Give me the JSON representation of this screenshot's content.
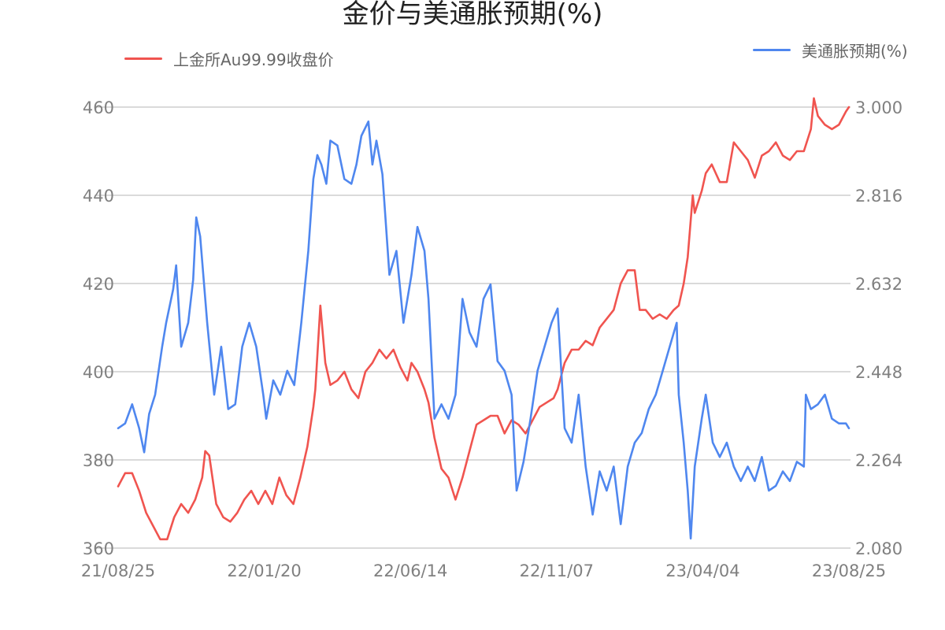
{
  "chart_data": {
    "type": "line",
    "title": "金价与美通胀预期(%)",
    "x_ticks": [
      "21/08/25",
      "22/01/20",
      "22/06/14",
      "22/11/07",
      "23/04/04",
      "23/08/25"
    ],
    "y_left": {
      "range": [
        360,
        460
      ],
      "ticks": [
        "360",
        "380",
        "400",
        "420",
        "440",
        "460"
      ]
    },
    "y_right": {
      "range": [
        2.08,
        3.0
      ],
      "ticks": [
        "2.080",
        "2.264",
        "2.448",
        "2.632",
        "2.816",
        "3.000"
      ]
    },
    "grid": true,
    "legend_placement": "top",
    "x_range": [
      "2021-08-25",
      "2023-08-25"
    ],
    "series": [
      {
        "name": "上金所Au99.99收盘价",
        "color": "#f0544f",
        "axis": "left",
        "points": [
          [
            "2021-08-25",
            374
          ],
          [
            "2021-09-01",
            377
          ],
          [
            "2021-09-08",
            377
          ],
          [
            "2021-09-15",
            373
          ],
          [
            "2021-09-22",
            368
          ],
          [
            "2021-09-29",
            365
          ],
          [
            "2021-10-06",
            362
          ],
          [
            "2021-10-13",
            362
          ],
          [
            "2021-10-20",
            367
          ],
          [
            "2021-10-27",
            370
          ],
          [
            "2021-11-03",
            368
          ],
          [
            "2021-11-10",
            371
          ],
          [
            "2021-11-17",
            376
          ],
          [
            "2021-11-20",
            382
          ],
          [
            "2021-11-24",
            381
          ],
          [
            "2021-12-01",
            370
          ],
          [
            "2021-12-08",
            367
          ],
          [
            "2021-12-15",
            366
          ],
          [
            "2021-12-22",
            368
          ],
          [
            "2021-12-29",
            371
          ],
          [
            "2022-01-05",
            373
          ],
          [
            "2022-01-12",
            370
          ],
          [
            "2022-01-19",
            373
          ],
          [
            "2022-01-26",
            370
          ],
          [
            "2022-02-02",
            376
          ],
          [
            "2022-02-09",
            372
          ],
          [
            "2022-02-16",
            370
          ],
          [
            "2022-02-23",
            376
          ],
          [
            "2022-03-02",
            383
          ],
          [
            "2022-03-08",
            392
          ],
          [
            "2022-03-10",
            396
          ],
          [
            "2022-03-15",
            415
          ],
          [
            "2022-03-20",
            402
          ],
          [
            "2022-03-25",
            397
          ],
          [
            "2022-04-01",
            398
          ],
          [
            "2022-04-08",
            400
          ],
          [
            "2022-04-15",
            396
          ],
          [
            "2022-04-22",
            394
          ],
          [
            "2022-04-29",
            400
          ],
          [
            "2022-05-06",
            402
          ],
          [
            "2022-05-13",
            405
          ],
          [
            "2022-05-20",
            403
          ],
          [
            "2022-05-27",
            405
          ],
          [
            "2022-06-03",
            401
          ],
          [
            "2022-06-10",
            398
          ],
          [
            "2022-06-14",
            402
          ],
          [
            "2022-06-20",
            400
          ],
          [
            "2022-06-27",
            396
          ],
          [
            "2022-07-01",
            393
          ],
          [
            "2022-07-07",
            385
          ],
          [
            "2022-07-14",
            378
          ],
          [
            "2022-07-21",
            376
          ],
          [
            "2022-07-28",
            371
          ],
          [
            "2022-08-04",
            376
          ],
          [
            "2022-08-11",
            382
          ],
          [
            "2022-08-18",
            388
          ],
          [
            "2022-08-25",
            389
          ],
          [
            "2022-09-01",
            390
          ],
          [
            "2022-09-08",
            390
          ],
          [
            "2022-09-15",
            386
          ],
          [
            "2022-09-22",
            389
          ],
          [
            "2022-09-29",
            388
          ],
          [
            "2022-10-06",
            386
          ],
          [
            "2022-10-13",
            389
          ],
          [
            "2022-10-20",
            392
          ],
          [
            "2022-10-27",
            393
          ],
          [
            "2022-11-03",
            394
          ],
          [
            "2022-11-07",
            396
          ],
          [
            "2022-11-14",
            402
          ],
          [
            "2022-11-21",
            405
          ],
          [
            "2022-11-28",
            405
          ],
          [
            "2022-12-05",
            407
          ],
          [
            "2022-12-12",
            406
          ],
          [
            "2022-12-19",
            410
          ],
          [
            "2022-12-26",
            412
          ],
          [
            "2023-01-02",
            414
          ],
          [
            "2023-01-09",
            420
          ],
          [
            "2023-01-16",
            423
          ],
          [
            "2023-01-23",
            423
          ],
          [
            "2023-01-28",
            414
          ],
          [
            "2023-02-03",
            414
          ],
          [
            "2023-02-10",
            412
          ],
          [
            "2023-02-17",
            413
          ],
          [
            "2023-02-24",
            412
          ],
          [
            "2023-03-03",
            414
          ],
          [
            "2023-03-08",
            415
          ],
          [
            "2023-03-13",
            420
          ],
          [
            "2023-03-17",
            426
          ],
          [
            "2023-03-22",
            440
          ],
          [
            "2023-03-24",
            436
          ],
          [
            "2023-03-31",
            441
          ],
          [
            "2023-04-04",
            445
          ],
          [
            "2023-04-10",
            447
          ],
          [
            "2023-04-14",
            445
          ],
          [
            "2023-04-18",
            443
          ],
          [
            "2023-04-25",
            443
          ],
          [
            "2023-05-02",
            452
          ],
          [
            "2023-05-09",
            450
          ],
          [
            "2023-05-16",
            448
          ],
          [
            "2023-05-23",
            444
          ],
          [
            "2023-05-30",
            449
          ],
          [
            "2023-06-06",
            450
          ],
          [
            "2023-06-13",
            452
          ],
          [
            "2023-06-20",
            449
          ],
          [
            "2023-06-27",
            448
          ],
          [
            "2023-07-04",
            450
          ],
          [
            "2023-07-11",
            450
          ],
          [
            "2023-07-18",
            455
          ],
          [
            "2023-07-21",
            462
          ],
          [
            "2023-07-25",
            458
          ],
          [
            "2023-08-01",
            456
          ],
          [
            "2023-08-08",
            455
          ],
          [
            "2023-08-15",
            456
          ],
          [
            "2023-08-22",
            459
          ],
          [
            "2023-08-25",
            460
          ]
        ]
      },
      {
        "name": "美通胀预期(%)",
        "color": "#4f87ef",
        "axis": "right",
        "points": [
          [
            "2021-08-25",
            2.33
          ],
          [
            "2021-09-01",
            2.34
          ],
          [
            "2021-09-08",
            2.38
          ],
          [
            "2021-09-15",
            2.33
          ],
          [
            "2021-09-20",
            2.28
          ],
          [
            "2021-09-25",
            2.36
          ],
          [
            "2021-10-01",
            2.4
          ],
          [
            "2021-10-08",
            2.5
          ],
          [
            "2021-10-12",
            2.55
          ],
          [
            "2021-10-19",
            2.62
          ],
          [
            "2021-10-22",
            2.67
          ],
          [
            "2021-10-27",
            2.5
          ],
          [
            "2021-11-03",
            2.55
          ],
          [
            "2021-11-08",
            2.64
          ],
          [
            "2021-11-11",
            2.77
          ],
          [
            "2021-11-15",
            2.73
          ],
          [
            "2021-11-22",
            2.55
          ],
          [
            "2021-11-29",
            2.4
          ],
          [
            "2021-12-06",
            2.5
          ],
          [
            "2021-12-13",
            2.37
          ],
          [
            "2021-12-20",
            2.38
          ],
          [
            "2021-12-27",
            2.5
          ],
          [
            "2022-01-03",
            2.55
          ],
          [
            "2022-01-10",
            2.5
          ],
          [
            "2022-01-17",
            2.4
          ],
          [
            "2022-01-20",
            2.35
          ],
          [
            "2022-01-27",
            2.43
          ],
          [
            "2022-02-03",
            2.4
          ],
          [
            "2022-02-10",
            2.45
          ],
          [
            "2022-02-17",
            2.42
          ],
          [
            "2022-02-24",
            2.55
          ],
          [
            "2022-03-03",
            2.7
          ],
          [
            "2022-03-08",
            2.85
          ],
          [
            "2022-03-12",
            2.9
          ],
          [
            "2022-03-16",
            2.88
          ],
          [
            "2022-03-21",
            2.84
          ],
          [
            "2022-03-25",
            2.93
          ],
          [
            "2022-04-01",
            2.92
          ],
          [
            "2022-04-08",
            2.85
          ],
          [
            "2022-04-15",
            2.84
          ],
          [
            "2022-04-20",
            2.88
          ],
          [
            "2022-04-25",
            2.94
          ],
          [
            "2022-05-02",
            2.97
          ],
          [
            "2022-05-06",
            2.88
          ],
          [
            "2022-05-10",
            2.93
          ],
          [
            "2022-05-16",
            2.86
          ],
          [
            "2022-05-23",
            2.65
          ],
          [
            "2022-05-30",
            2.7
          ],
          [
            "2022-06-06",
            2.55
          ],
          [
            "2022-06-14",
            2.65
          ],
          [
            "2022-06-20",
            2.75
          ],
          [
            "2022-06-27",
            2.7
          ],
          [
            "2022-07-01",
            2.6
          ],
          [
            "2022-07-07",
            2.35
          ],
          [
            "2022-07-14",
            2.38
          ],
          [
            "2022-07-21",
            2.35
          ],
          [
            "2022-07-28",
            2.4
          ],
          [
            "2022-08-04",
            2.6
          ],
          [
            "2022-08-11",
            2.53
          ],
          [
            "2022-08-18",
            2.5
          ],
          [
            "2022-08-25",
            2.6
          ],
          [
            "2022-09-01",
            2.63
          ],
          [
            "2022-09-08",
            2.47
          ],
          [
            "2022-09-15",
            2.45
          ],
          [
            "2022-09-22",
            2.4
          ],
          [
            "2022-09-27",
            2.2
          ],
          [
            "2022-10-04",
            2.26
          ],
          [
            "2022-10-11",
            2.35
          ],
          [
            "2022-10-18",
            2.45
          ],
          [
            "2022-10-25",
            2.5
          ],
          [
            "2022-11-01",
            2.55
          ],
          [
            "2022-11-07",
            2.58
          ],
          [
            "2022-11-14",
            2.33
          ],
          [
            "2022-11-21",
            2.3
          ],
          [
            "2022-11-28",
            2.4
          ],
          [
            "2022-12-05",
            2.25
          ],
          [
            "2022-12-12",
            2.15
          ],
          [
            "2022-12-19",
            2.24
          ],
          [
            "2022-12-26",
            2.2
          ],
          [
            "2023-01-02",
            2.25
          ],
          [
            "2023-01-09",
            2.13
          ],
          [
            "2023-01-16",
            2.25
          ],
          [
            "2023-01-23",
            2.3
          ],
          [
            "2023-01-30",
            2.32
          ],
          [
            "2023-02-06",
            2.37
          ],
          [
            "2023-02-13",
            2.4
          ],
          [
            "2023-02-20",
            2.45
          ],
          [
            "2023-02-27",
            2.5
          ],
          [
            "2023-03-06",
            2.55
          ],
          [
            "2023-03-08",
            2.4
          ],
          [
            "2023-03-13",
            2.3
          ],
          [
            "2023-03-17",
            2.2
          ],
          [
            "2023-03-20",
            2.1
          ],
          [
            "2023-03-24",
            2.25
          ],
          [
            "2023-03-31",
            2.35
          ],
          [
            "2023-04-04",
            2.4
          ],
          [
            "2023-04-11",
            2.3
          ],
          [
            "2023-04-18",
            2.27
          ],
          [
            "2023-04-25",
            2.3
          ],
          [
            "2023-05-02",
            2.25
          ],
          [
            "2023-05-09",
            2.22
          ],
          [
            "2023-05-16",
            2.25
          ],
          [
            "2023-05-23",
            2.22
          ],
          [
            "2023-05-30",
            2.27
          ],
          [
            "2023-06-06",
            2.2
          ],
          [
            "2023-06-13",
            2.21
          ],
          [
            "2023-06-20",
            2.24
          ],
          [
            "2023-06-27",
            2.22
          ],
          [
            "2023-07-04",
            2.26
          ],
          [
            "2023-07-11",
            2.25
          ],
          [
            "2023-07-13",
            2.4
          ],
          [
            "2023-07-18",
            2.37
          ],
          [
            "2023-07-25",
            2.38
          ],
          [
            "2023-08-01",
            2.4
          ],
          [
            "2023-08-08",
            2.35
          ],
          [
            "2023-08-15",
            2.34
          ],
          [
            "2023-08-22",
            2.34
          ],
          [
            "2023-08-25",
            2.33
          ]
        ]
      }
    ]
  }
}
